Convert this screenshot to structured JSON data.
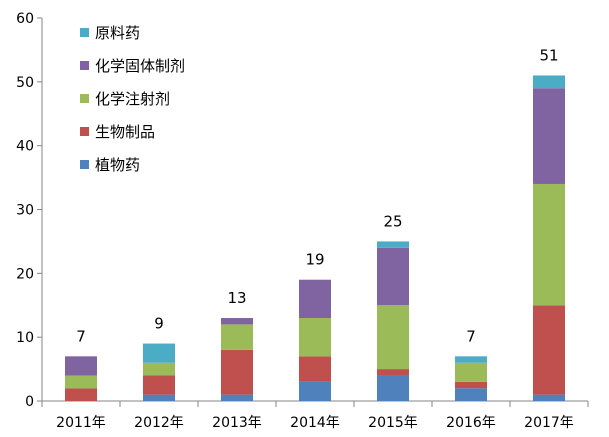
{
  "chart_data": {
    "type": "bar",
    "stacked": true,
    "categories": [
      "2011年",
      "2012年",
      "2013年",
      "2014年",
      "2015年",
      "2016年",
      "2017年"
    ],
    "series": [
      {
        "name": "植物药",
        "color": "#4f81bd",
        "values": [
          0,
          1,
          1,
          3,
          4,
          2,
          1
        ]
      },
      {
        "name": "生物制品",
        "color": "#c0504d",
        "values": [
          2,
          3,
          7,
          4,
          1,
          1,
          14
        ]
      },
      {
        "name": "化学注射剂",
        "color": "#9bbb59",
        "values": [
          2,
          2,
          4,
          6,
          10,
          3,
          19
        ]
      },
      {
        "name": "化学固体制剂",
        "color": "#8064a2",
        "values": [
          3,
          0,
          1,
          6,
          9,
          0,
          15
        ]
      },
      {
        "name": "原料药",
        "color": "#4bacc6",
        "values": [
          0,
          3,
          0,
          0,
          1,
          1,
          2
        ]
      }
    ],
    "totals": [
      7,
      9,
      13,
      19,
      25,
      7,
      51
    ],
    "ylim": [
      0,
      60
    ],
    "yticks": [
      0,
      10,
      20,
      30,
      40,
      50,
      60
    ],
    "legend_position": "top-left",
    "grid": false
  }
}
